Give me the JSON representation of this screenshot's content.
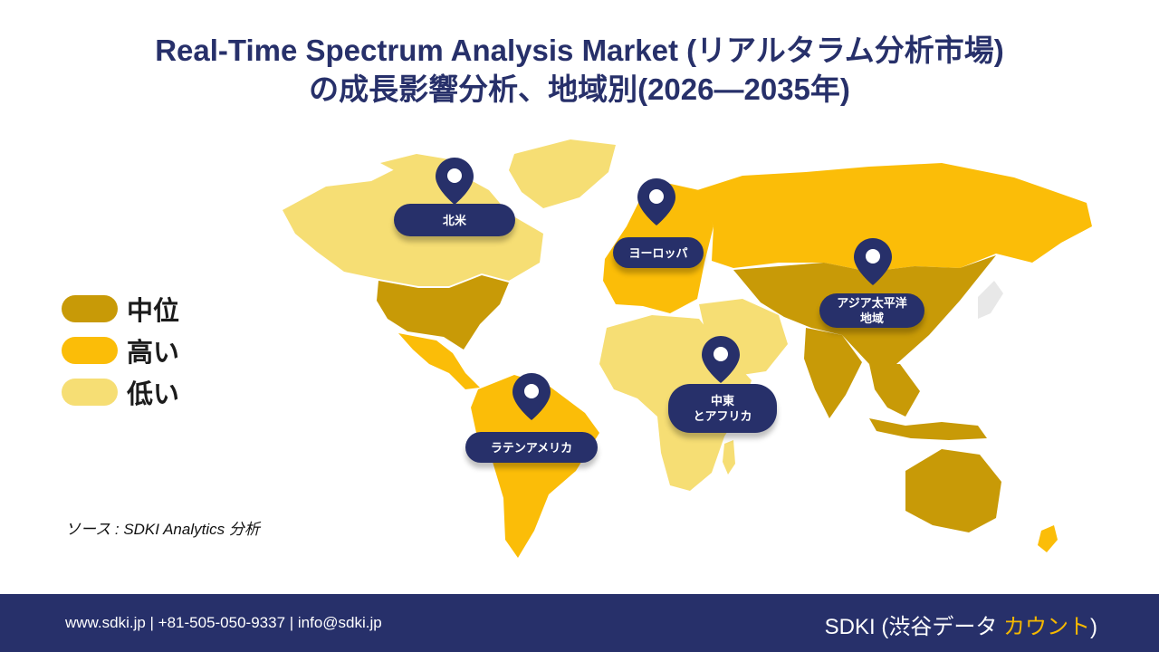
{
  "title": {
    "line1": "Real-Time Spectrum Analysis Market (リアルタラム分析市場)",
    "line2": "の成長影響分析、地域別(2026—2035年)"
  },
  "legend": [
    {
      "label": "中位",
      "color": "#c89a07"
    },
    {
      "label": "高い",
      "color": "#fbbd08"
    },
    {
      "label": "低い",
      "color": "#f6de74"
    }
  ],
  "regions": [
    {
      "label": "北米",
      "level": "中位"
    },
    {
      "label": "ヨーロッパ",
      "level": "高い"
    },
    {
      "label": "アジア太平洋\n地域",
      "level": "中位"
    },
    {
      "label": "中東\nとアフリカ",
      "level": "低い"
    },
    {
      "label": "ラテンアメリカ",
      "level": "高い"
    }
  ],
  "source": "ソース : SDKI Analytics 分析",
  "footer": {
    "contact": "www.sdki.jp | +81-505-050-9337 | info@sdki.jp",
    "brand_prefix": "SDKI (渋谷データ ",
    "brand_accent": "カウント",
    "brand_suffix": ")"
  },
  "colors": {
    "navy": "#27306a",
    "medium": "#c89a07",
    "high": "#fbbd08",
    "low": "#f6de74"
  }
}
